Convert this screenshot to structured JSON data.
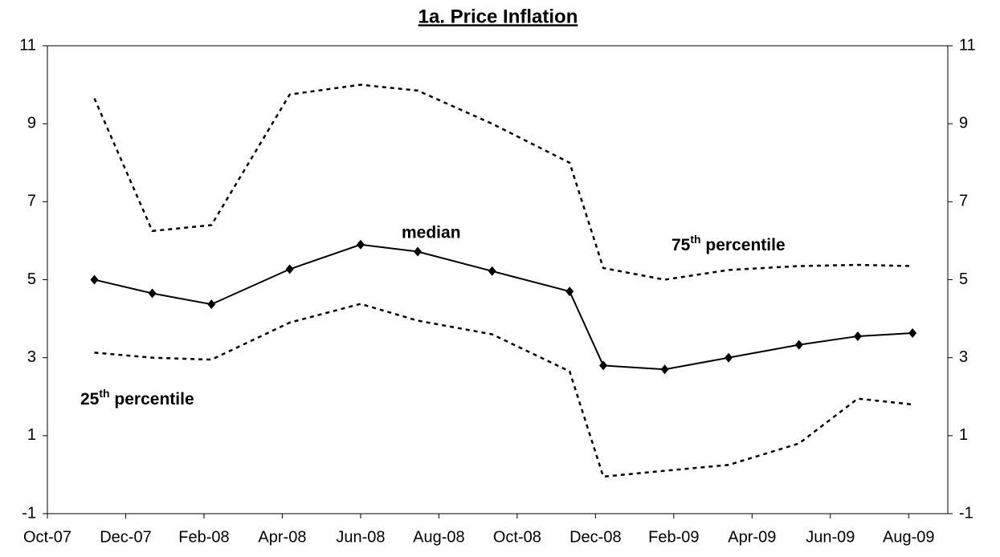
{
  "chart_data": {
    "type": "line",
    "title": "1a. Price Inflation",
    "x": [
      1.2,
      2.68,
      4.19,
      6.19,
      8.0,
      9.46,
      11.36,
      13.34,
      14.2,
      15.77,
      17.4,
      19.2,
      20.7,
      22.1
    ],
    "xlim": [
      0,
      23
    ],
    "xticks": [
      {
        "value": 0,
        "label": "Oct-07"
      },
      {
        "value": 2,
        "label": "Dec-07"
      },
      {
        "value": 4,
        "label": "Feb-08"
      },
      {
        "value": 6,
        "label": "Apr-08"
      },
      {
        "value": 8,
        "label": "Jun-08"
      },
      {
        "value": 10,
        "label": "Aug-08"
      },
      {
        "value": 12,
        "label": "Oct-08"
      },
      {
        "value": 14,
        "label": "Dec-08"
      },
      {
        "value": 16,
        "label": "Feb-09"
      },
      {
        "value": 18,
        "label": "Apr-09"
      },
      {
        "value": 20,
        "label": "Jun-09"
      },
      {
        "value": 22,
        "label": "Aug-09"
      }
    ],
    "ylim": [
      -1,
      11
    ],
    "yticks": [
      -1,
      1,
      3,
      5,
      7,
      9,
      11
    ],
    "y2lim": [
      -1,
      11
    ],
    "y2ticks": [
      -1,
      1,
      3,
      5,
      7,
      9,
      11
    ],
    "series": [
      {
        "name": "median",
        "color": "#000000",
        "style": "solid",
        "markers": true,
        "values": [
          5.0,
          4.65,
          4.37,
          5.27,
          5.9,
          5.72,
          5.22,
          4.7,
          2.8,
          2.7,
          3.0,
          3.33,
          3.55,
          3.63
        ]
      },
      {
        "name": [
          "75",
          "th",
          " percentile"
        ],
        "color": "#000000",
        "style": "dashed",
        "markers": false,
        "values": [
          9.65,
          6.25,
          6.4,
          9.75,
          10.0,
          9.85,
          9.0,
          8.0,
          5.3,
          5.0,
          5.25,
          5.35,
          5.38,
          5.35
        ]
      },
      {
        "name": [
          "25",
          "th",
          " percentile"
        ],
        "color": "#000000",
        "style": "dashed",
        "markers": false,
        "values": [
          3.13,
          3.0,
          2.95,
          3.9,
          4.38,
          3.95,
          3.6,
          2.65,
          -0.05,
          0.1,
          0.25,
          0.8,
          1.95,
          1.8
        ]
      }
    ]
  }
}
